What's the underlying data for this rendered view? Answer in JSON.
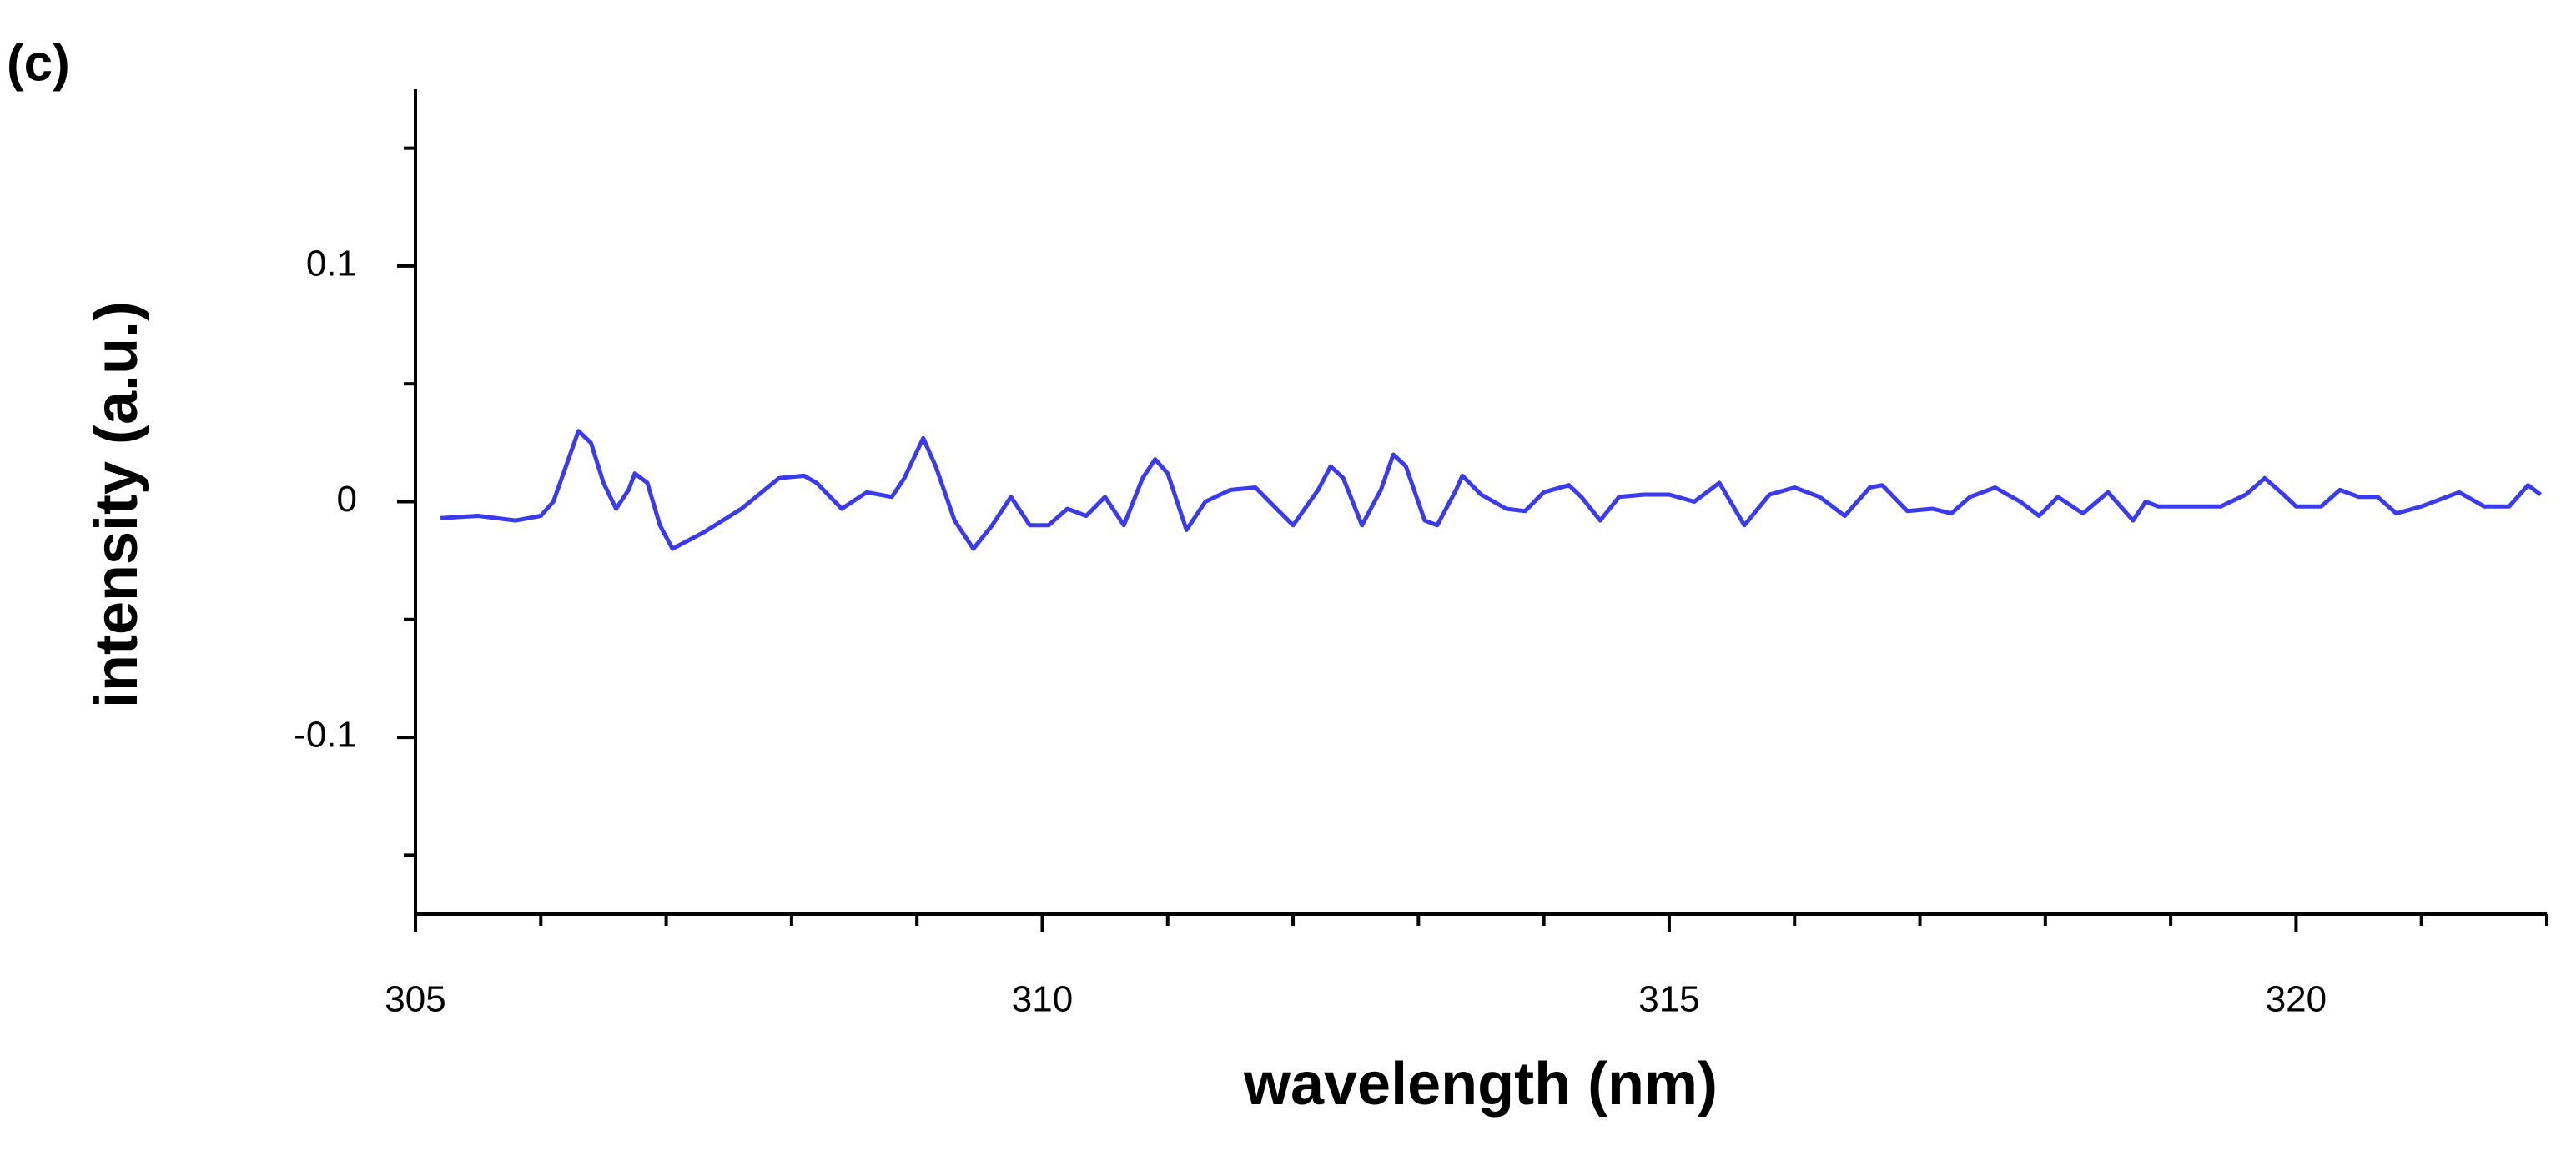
{
  "chart_data": {
    "type": "line",
    "panel_label": "(c)",
    "xlabel": "wavelength (nm)",
    "ylabel": "intensity (a.u.)",
    "xlim": [
      305,
      322
    ],
    "xticks": [
      305,
      310,
      315,
      320
    ],
    "xminorticks": [
      306,
      307,
      308,
      309,
      311,
      312,
      313,
      314,
      316,
      317,
      318,
      319,
      321,
      322
    ],
    "ylim": [
      -0.175,
      0.175
    ],
    "yticks": [
      -0.1,
      0,
      0.1
    ],
    "yminorticks": [
      -0.15,
      -0.05,
      0.05,
      0.15
    ],
    "x": [
      305.2,
      305.5,
      305.8,
      306.0,
      306.1,
      306.2,
      306.3,
      306.4,
      306.5,
      306.6,
      306.7,
      306.75,
      306.85,
      306.95,
      307.05,
      307.3,
      307.6,
      307.9,
      308.1,
      308.2,
      308.4,
      308.6,
      308.8,
      308.9,
      309.05,
      309.15,
      309.3,
      309.45,
      309.6,
      309.75,
      309.9,
      310.05,
      310.2,
      310.35,
      310.5,
      310.65,
      310.8,
      310.9,
      311.0,
      311.15,
      311.3,
      311.5,
      311.7,
      311.85,
      312.0,
      312.2,
      312.3,
      312.4,
      312.55,
      312.7,
      312.8,
      312.9,
      313.05,
      313.15,
      313.3,
      313.35,
      313.5,
      313.7,
      313.85,
      314.0,
      314.2,
      314.3,
      314.45,
      314.6,
      314.8,
      315.0,
      315.2,
      315.4,
      315.6,
      315.8,
      316.0,
      316.2,
      316.4,
      316.6,
      316.7,
      316.9,
      317.1,
      317.25,
      317.4,
      317.6,
      317.8,
      317.95,
      318.1,
      318.3,
      318.5,
      318.7,
      318.8,
      318.9,
      319.1,
      319.4,
      319.6,
      319.75,
      319.9,
      320.0,
      320.2,
      320.35,
      320.5,
      320.65,
      320.8,
      321.0,
      321.3,
      321.5,
      321.7,
      321.85,
      321.95
    ],
    "series": [
      {
        "color": "#3a3aee",
        "values": [
          -0.007,
          -0.006,
          -0.008,
          -0.006,
          0.0,
          0.015,
          0.03,
          0.025,
          0.008,
          -0.003,
          0.005,
          0.012,
          0.008,
          -0.01,
          -0.02,
          -0.013,
          -0.003,
          0.01,
          0.011,
          0.008,
          -0.003,
          0.004,
          0.002,
          0.01,
          0.027,
          0.015,
          -0.008,
          -0.02,
          -0.01,
          0.002,
          -0.01,
          -0.01,
          -0.003,
          -0.006,
          0.002,
          -0.01,
          0.01,
          0.018,
          0.012,
          -0.012,
          0.0,
          0.005,
          0.006,
          -0.002,
          -0.01,
          0.005,
          0.015,
          0.01,
          -0.01,
          0.005,
          0.02,
          0.015,
          -0.008,
          -0.01,
          0.005,
          0.011,
          0.003,
          -0.003,
          -0.004,
          0.004,
          0.007,
          0.002,
          -0.008,
          0.002,
          0.003,
          0.003,
          0.0,
          0.008,
          -0.01,
          0.003,
          0.006,
          0.002,
          -0.006,
          0.006,
          0.007,
          -0.004,
          -0.003,
          -0.005,
          0.002,
          0.006,
          0.0,
          -0.006,
          0.002,
          -0.005,
          0.004,
          -0.008,
          0.0,
          -0.002,
          -0.002,
          -0.002,
          0.003,
          0.01,
          0.003,
          -0.002,
          -0.002,
          0.005,
          0.002,
          0.002,
          -0.005,
          -0.002,
          0.004,
          -0.002,
          -0.002,
          0.007,
          0.003
        ]
      }
    ]
  }
}
